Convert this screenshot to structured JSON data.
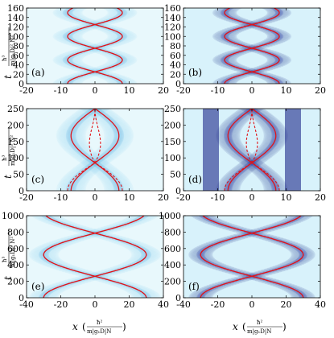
{
  "figure": {
    "y_label_main": "t",
    "y_label_frac_num": "ħ³",
    "y_label_frac_den": "m|g₁D|² N²",
    "x_label_main": "x",
    "x_label_frac_num": "ħ²",
    "x_label_frac_den": "m|g₁D|N",
    "colors": {
      "background": "#e8f8fc",
      "density_mid": "#3fb4e8",
      "density_dark": "#0d1680",
      "trajectory": "#e0141a"
    }
  },
  "chart_data": [
    {
      "panel": "(a)",
      "type": "heatmap",
      "xlim": [
        -20,
        20
      ],
      "ylim": [
        0,
        160
      ],
      "xticks": [
        "-20",
        "-10",
        "0",
        "10",
        "20"
      ],
      "yticks": [
        "0",
        "20",
        "40",
        "60",
        "80",
        "100",
        "120",
        "140",
        "160"
      ],
      "solid_amplitude": 8,
      "dashed_amplitude": 8,
      "period": 100,
      "collision_times": [
        25,
        75,
        125
      ],
      "intensity": "light"
    },
    {
      "panel": "(b)",
      "type": "heatmap",
      "xlim": [
        -20,
        20
      ],
      "ylim": [
        0,
        160
      ],
      "xticks": [
        "-20",
        "-10",
        "0",
        "10",
        "20"
      ],
      "yticks": [
        "0",
        "20",
        "40",
        "60",
        "80",
        "100",
        "120",
        "140",
        "160"
      ],
      "solid_amplitude": 8,
      "dashed_amplitude": 8,
      "period": 100,
      "collision_times": [
        25,
        75,
        125
      ],
      "intensity": "dark"
    },
    {
      "panel": "(c)",
      "type": "heatmap",
      "xlim": [
        -20,
        20
      ],
      "ylim": [
        0,
        250
      ],
      "xticks": [
        "-20",
        "-10",
        "0",
        "10",
        "20"
      ],
      "yticks": [
        "0",
        "50",
        "100",
        "150",
        "200",
        "250"
      ],
      "solid_amplitude": 7,
      "dashed_amplitude": 8,
      "collision_times": [
        85,
        250
      ],
      "intensity": "light"
    },
    {
      "panel": "(d)",
      "type": "heatmap",
      "xlim": [
        -20,
        20
      ],
      "ylim": [
        0,
        250
      ],
      "xticks": [
        "-20",
        "-10",
        "0",
        "10",
        "20"
      ],
      "yticks": [
        "0",
        "50",
        "100",
        "150",
        "200",
        "250"
      ],
      "solid_amplitude": 7,
      "dashed_amplitude": 8,
      "collision_times": [
        85,
        250
      ],
      "intensity": "dark"
    },
    {
      "panel": "(e)",
      "type": "heatmap",
      "xlim": [
        -40,
        40
      ],
      "ylim": [
        0,
        1000
      ],
      "xticks": [
        "-40",
        "-20",
        "0",
        "20",
        "40"
      ],
      "yticks": [
        "0",
        "200",
        "400",
        "600",
        "800",
        "1000"
      ],
      "solid_amplitude": 30,
      "dashed_amplitude": 30,
      "period": 1050,
      "collision_times": [
        262,
        787
      ],
      "intensity": "light"
    },
    {
      "panel": "(f)",
      "type": "heatmap",
      "xlim": [
        -40,
        40
      ],
      "ylim": [
        0,
        1000
      ],
      "xticks": [
        "-40",
        "-20",
        "0",
        "20",
        "40"
      ],
      "yticks": [
        "0",
        "200",
        "400",
        "600",
        "800",
        "1000"
      ],
      "solid_amplitude": 30,
      "dashed_amplitude": 30,
      "period": 1050,
      "collision_times": [
        262,
        787
      ],
      "intensity": "dark"
    }
  ]
}
